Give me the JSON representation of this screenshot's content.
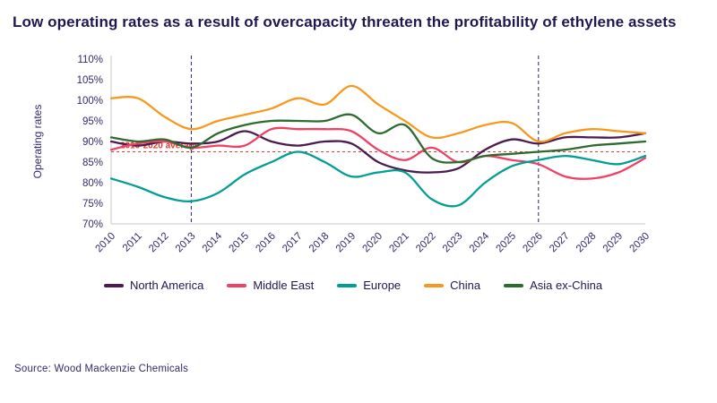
{
  "title": "Low operating rates as a result of overcapacity threaten the profitability of ethylene assets",
  "source": "Source: Wood Mackenzie Chemicals",
  "colors": {
    "title_navy": "#201751",
    "axis_text": "#332a6b",
    "axis_line": "#c7c7d6",
    "vertical_marker": "#2b2171",
    "reference_red": "#e03c31"
  },
  "chart_data": {
    "type": "line",
    "title": "Low operating rates as a result of overcapacity threaten the profitability of ethylene assets",
    "xlabel": "",
    "ylabel": "Operating rates",
    "ylim": [
      70,
      110
    ],
    "ytick_step": 5,
    "ytick_suffix": "%",
    "grid": false,
    "legend_position": "bottom",
    "x": [
      "2010",
      "2011",
      "2012",
      "2013",
      "2014",
      "2015",
      "2016",
      "2017",
      "2018",
      "2019",
      "2020",
      "2021",
      "2022",
      "2023",
      "2024",
      "2025",
      "2026",
      "2027",
      "2028",
      "2029",
      "2030"
    ],
    "series": [
      {
        "name": "North America",
        "color": "#4d1a4f",
        "values": [
          90,
          89,
          90,
          89.5,
          90,
          92.5,
          90,
          89,
          90,
          89.5,
          85,
          83,
          82.5,
          83.5,
          88,
          90.5,
          89.5,
          91,
          91,
          91,
          92
        ]
      },
      {
        "name": "Middle East",
        "color": "#ef4166",
        "values": [
          88,
          89.5,
          90,
          88.5,
          89,
          89,
          93,
          93,
          93,
          92.5,
          88,
          85.5,
          88.5,
          85,
          86.5,
          85.5,
          84.5,
          81.5,
          81,
          82.5,
          86
        ]
      },
      {
        "name": "Europe",
        "color": "#009e94",
        "values": [
          81,
          79,
          76.5,
          75.5,
          77.5,
          82,
          85,
          87.5,
          85,
          81.5,
          82.5,
          82.5,
          76,
          74.5,
          80,
          84,
          85.5,
          86.5,
          85.5,
          84.5,
          86.5
        ]
      },
      {
        "name": "China",
        "color": "#f8981d",
        "values": [
          100.5,
          100.5,
          96,
          93,
          95,
          96.5,
          98,
          100.5,
          99,
          103.5,
          99,
          95,
          91,
          92,
          94,
          94.5,
          90,
          92,
          93,
          92.5,
          92
        ]
      },
      {
        "name": "Asia ex-China",
        "color": "#2e6b2e",
        "values": [
          91,
          90,
          90.5,
          88.5,
          92,
          94,
          95,
          95,
          95,
          96.5,
          92,
          94,
          86,
          85,
          86.5,
          87,
          87.5,
          88,
          89,
          89.5,
          90
        ]
      }
    ],
    "reference_line": {
      "label": "2010-2020 average",
      "value": 87.5
    },
    "vertical_lines": [
      "2013",
      "2026"
    ]
  }
}
